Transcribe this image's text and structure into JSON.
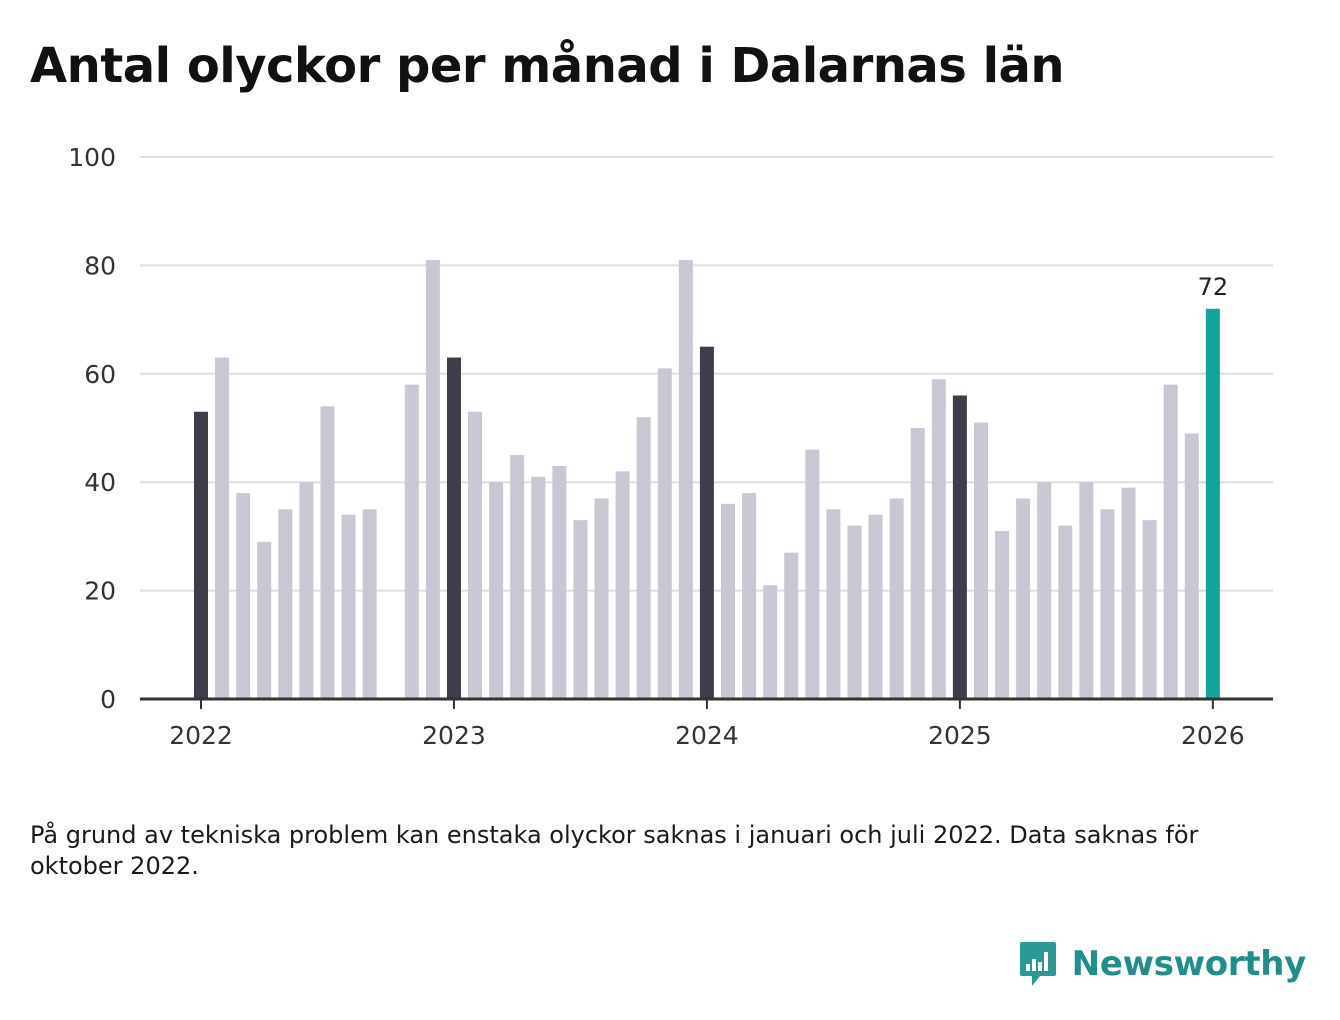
{
  "title": "Antal olyckor per månad i Dalarnas län",
  "footnote": "På grund av tekniska problem kan enstaka olyckor saknas i januari och juli 2022. Data saknas för oktober 2022.",
  "brand": {
    "name": "Newsworthy",
    "icon": "newsworthy-logo-icon"
  },
  "colors": {
    "regular": "#c8c7d4",
    "january": "#3e3d4b",
    "latest": "#12a39a",
    "grid": "#dddddd",
    "axis": "#333333"
  },
  "chart_data": {
    "type": "bar",
    "title": "Antal olyckor per månad i Dalarnas län",
    "xlabel": "",
    "ylabel": "",
    "ylim": [
      0,
      100
    ],
    "yticks": [
      0,
      20,
      40,
      60,
      80,
      100
    ],
    "xticks": [
      "2022",
      "2023",
      "2024",
      "2025",
      "2026"
    ],
    "grid": true,
    "highlight_label": "72",
    "series": [
      {
        "name": "Antal olyckor",
        "categories": [
          "2022-01",
          "2022-02",
          "2022-03",
          "2022-04",
          "2022-05",
          "2022-06",
          "2022-07",
          "2022-08",
          "2022-09",
          "2022-10",
          "2022-11",
          "2022-12",
          "2023-01",
          "2023-02",
          "2023-03",
          "2023-04",
          "2023-05",
          "2023-06",
          "2023-07",
          "2023-08",
          "2023-09",
          "2023-10",
          "2023-11",
          "2023-12",
          "2024-01",
          "2024-02",
          "2024-03",
          "2024-04",
          "2024-05",
          "2024-06",
          "2024-07",
          "2024-08",
          "2024-09",
          "2024-10",
          "2024-11",
          "2024-12",
          "2025-01",
          "2025-02",
          "2025-03",
          "2025-04",
          "2025-05",
          "2025-06",
          "2025-07",
          "2025-08",
          "2025-09",
          "2025-10",
          "2025-11",
          "2025-12",
          "2026-01"
        ],
        "values": [
          53,
          63,
          38,
          29,
          35,
          40,
          54,
          34,
          35,
          null,
          58,
          81,
          63,
          53,
          40,
          45,
          41,
          43,
          33,
          37,
          42,
          52,
          61,
          81,
          65,
          36,
          38,
          21,
          27,
          46,
          35,
          32,
          34,
          37,
          50,
          59,
          56,
          51,
          31,
          37,
          40,
          32,
          40,
          35,
          39,
          33,
          58,
          49,
          72
        ]
      }
    ]
  }
}
